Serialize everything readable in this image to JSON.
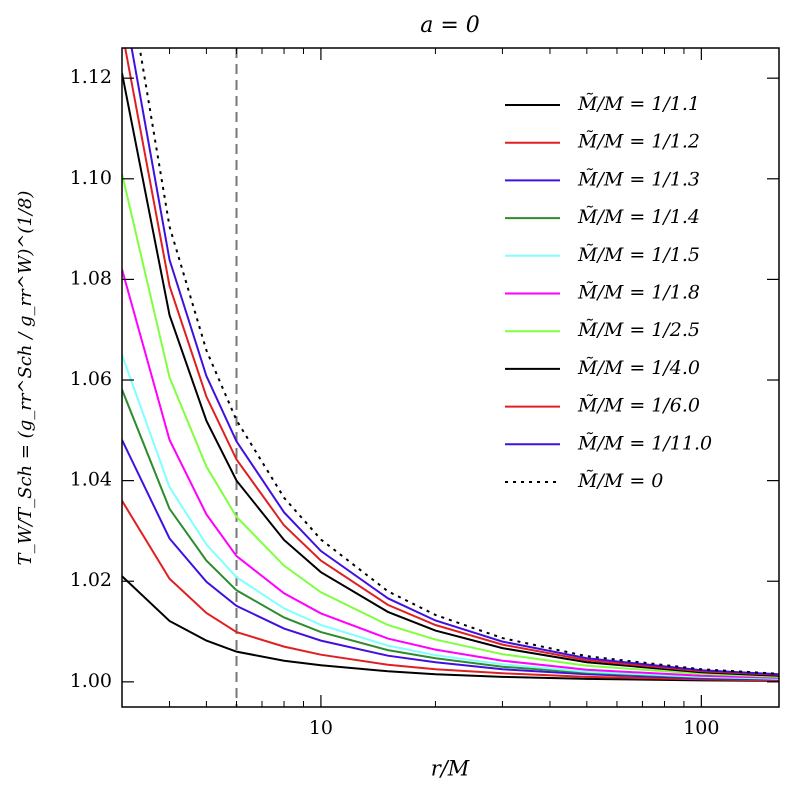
{
  "chart_data": {
    "type": "line",
    "title": "a = 0",
    "xlabel": "r/M",
    "ylabel": "T_W/T_Sch = (g_rr^Sch / g_rr^W)^(1/8)",
    "log_x": true,
    "x": [
      3,
      4,
      5,
      6,
      8,
      10,
      15,
      20,
      30,
      50,
      100,
      160
    ],
    "series": [
      {
        "name": "M̃/M = 1/1.1",
        "color": "#000000",
        "style": "solid",
        "values": [
          1.021,
          1.0121,
          1.0082,
          1.006,
          1.0042,
          1.0033,
          1.0021,
          1.0015,
          1.001,
          1.0006,
          1.0003,
          1.0002
        ]
      },
      {
        "name": "M̃/M = 1/1.2",
        "color": "#e02020",
        "style": "solid",
        "values": [
          1.036,
          1.0205,
          1.0137,
          1.0099,
          1.007,
          1.0054,
          1.0034,
          1.0025,
          1.0017,
          1.001,
          1.0005,
          1.0003
        ]
      },
      {
        "name": "M̃/M = 1/1.3",
        "color": "#4010e0",
        "style": "solid",
        "values": [
          1.0481,
          1.0285,
          1.0199,
          1.0151,
          1.0106,
          1.0082,
          1.0052,
          1.0039,
          1.0025,
          1.0015,
          1.0007,
          1.0005
        ]
      },
      {
        "name": "M̃/M = 1/1.4",
        "color": "#2e8b2e",
        "style": "solid",
        "values": [
          1.0581,
          1.0344,
          1.0241,
          1.0182,
          1.0128,
          1.0099,
          1.0063,
          1.0047,
          1.003,
          1.0018,
          1.0009,
          1.0006
        ]
      },
      {
        "name": "M̃/M = 1/1.5",
        "color": "#80ffff",
        "style": "solid",
        "values": [
          1.065,
          1.0387,
          1.0273,
          1.0208,
          1.0146,
          1.0113,
          1.0072,
          1.0053,
          1.0035,
          1.002,
          1.001,
          1.0006
        ]
      },
      {
        "name": "M̃/M = 1/1.8",
        "color": "#ff00ff",
        "style": "solid",
        "values": [
          1.082,
          1.0481,
          1.0333,
          1.025,
          1.0176,
          1.0136,
          1.0086,
          1.0064,
          1.0042,
          1.0024,
          1.0012,
          1.0008
        ]
      },
      {
        "name": "M̃/M = 1/2.5",
        "color": "#80ff40",
        "style": "solid",
        "values": [
          1.101,
          1.0605,
          1.0428,
          1.0328,
          1.0231,
          1.0178,
          1.0113,
          1.0084,
          1.0055,
          1.0032,
          1.0016,
          1.001
        ]
      },
      {
        "name": "M̃/M = 1/4.0",
        "color": "#000000",
        "style": "solid",
        "values": [
          1.121,
          1.0729,
          1.0519,
          1.04,
          1.0282,
          1.0218,
          1.0139,
          1.0102,
          1.0067,
          1.0039,
          1.0019,
          1.0012
        ]
      },
      {
        "name": "M̃/M = 1/6.0",
        "color": "#e02020",
        "style": "solid",
        "values": [
          1.1294,
          1.0787,
          1.0567,
          1.0442,
          1.0311,
          1.0241,
          1.0153,
          1.0113,
          1.0074,
          1.0043,
          1.0021,
          1.0014
        ]
      },
      {
        "name": "M̃/M = 1/11.0",
        "color": "#4010e0",
        "style": "solid",
        "values": [
          1.1367,
          1.0839,
          1.0608,
          1.0478,
          1.0337,
          1.026,
          1.0166,
          1.0122,
          1.008,
          1.0047,
          1.0023,
          1.0015
        ]
      },
      {
        "name": "M̃/M = 0",
        "color": "#000000",
        "style": "dotted",
        "values": [
          1.147,
          1.0905,
          1.0659,
          1.052,
          1.0366,
          1.0283,
          1.018,
          1.0133,
          1.0087,
          1.0051,
          1.0025,
          1.0016
        ]
      }
    ],
    "xlim": [
      3,
      160
    ],
    "xticks": [
      10,
      100
    ],
    "xminor": [
      3,
      4,
      5,
      6,
      7,
      8,
      9,
      20,
      30,
      40,
      50,
      60,
      70,
      80,
      90
    ],
    "ylim": [
      0.995,
      1.126
    ],
    "yticks": [
      {
        "value": 1.0,
        "label": "1.00"
      },
      1.02,
      1.04,
      1.06,
      1.08,
      {
        "value": 1.1,
        "label": "1.10"
      },
      1.12
    ],
    "vline": {
      "x": 6,
      "color": "#777777"
    },
    "legend": "upper right"
  }
}
